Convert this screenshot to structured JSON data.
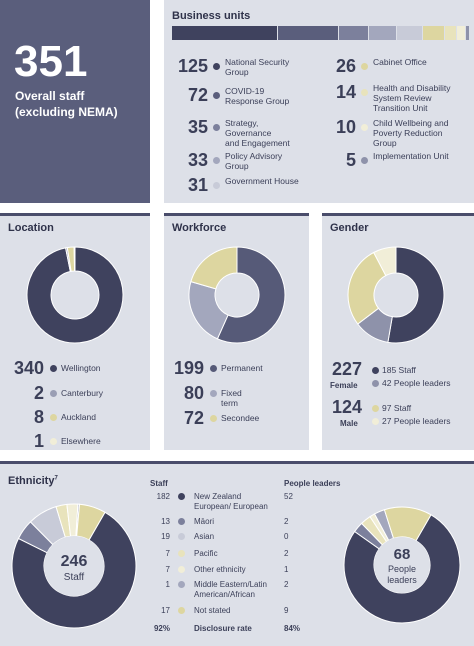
{
  "overall": {
    "number": "351",
    "label_line1": "Overall staff",
    "label_line2": "(excluding NEMA)"
  },
  "business_units": {
    "title": "Business units",
    "items": [
      {
        "value": 125,
        "label": "National Security Group",
        "lines": [
          "National Security",
          "Group"
        ],
        "color": "#3f425e"
      },
      {
        "value": 72,
        "label": "COVID-19 Response Group",
        "lines": [
          "COVID-19",
          "Response Group"
        ],
        "color": "#5a5e7c"
      },
      {
        "value": 35,
        "label": "Strategy, Governance and Engagement",
        "lines": [
          "Strategy,",
          "Governance",
          "and Engagement"
        ],
        "color": "#7c809c"
      },
      {
        "value": 33,
        "label": "Policy Advisory Group",
        "lines": [
          "Policy Advisory",
          "Group"
        ],
        "color": "#a3a7bd"
      },
      {
        "value": 31,
        "label": "Government House",
        "lines": [
          "Government House"
        ],
        "color": "#c8cbd8"
      },
      {
        "value": 26,
        "label": "Cabinet Office",
        "lines": [
          "Cabinet Office"
        ],
        "color": "#ddd6a0"
      },
      {
        "value": 14,
        "label": "Health and Disability System Review Transition Unit",
        "lines": [
          "Health and Disability",
          "System Review",
          "Transition Unit"
        ],
        "color": "#e8e3bc"
      },
      {
        "value": 10,
        "label": "Child Wellbeing and Poverty Reduction Group",
        "lines": [
          "Child Wellbeing and",
          "Poverty Reduction",
          "Group"
        ],
        "color": "#f1eed8"
      },
      {
        "value": 5,
        "label": "Implementation Unit",
        "lines": [
          "Implementation Unit"
        ],
        "color": "#8e92aa"
      }
    ]
  },
  "location": {
    "title": "Location",
    "items": [
      {
        "value": 340,
        "label": "Wellington",
        "color": "#3f425e"
      },
      {
        "value": 2,
        "label": "Canterbury",
        "color": "#9a9eb4"
      },
      {
        "value": 8,
        "label": "Auckland",
        "color": "#ddd6a0"
      },
      {
        "value": 1,
        "label": "Elsewhere",
        "color": "#f1eed8"
      }
    ]
  },
  "workforce": {
    "title": "Workforce",
    "items": [
      {
        "value": 199,
        "label": "Permanent",
        "color": "#565a78"
      },
      {
        "value": 80,
        "label": "Fixed term",
        "color": "#a3a7bd"
      },
      {
        "value": 72,
        "label": "Secondee",
        "color": "#ddd6a0"
      }
    ]
  },
  "gender": {
    "title": "Gender",
    "female": {
      "value": 227,
      "label": "Female",
      "staff": "185 Staff",
      "leaders": "42 People leaders"
    },
    "male": {
      "value": 124,
      "label": "Male",
      "staff": "97 Staff",
      "leaders": "27 People leaders"
    },
    "segments": [
      {
        "value": 185,
        "color": "#3f425e"
      },
      {
        "value": 42,
        "color": "#8e92aa"
      },
      {
        "value": 97,
        "color": "#ddd6a0"
      },
      {
        "value": 27,
        "color": "#f1eed8"
      }
    ]
  },
  "ethnicity": {
    "title": "Ethnicity",
    "title_sup": "7",
    "staff_total": "246",
    "staff_label": "Staff",
    "leaders_total": "68",
    "leaders_label_line1": "People",
    "leaders_label_line2": "leaders",
    "col_staff": "Staff",
    "col_leaders": "People leaders",
    "rows": [
      {
        "staff": "182",
        "label_lines": [
          "New Zealand",
          "European/ European"
        ],
        "leaders": "52",
        "color": "#3f425e"
      },
      {
        "staff": "13",
        "label_lines": [
          "Māori"
        ],
        "leaders": "2",
        "color": "#7c809c"
      },
      {
        "staff": "19",
        "label_lines": [
          "Asian"
        ],
        "leaders": "0",
        "color": "#c8cbd8"
      },
      {
        "staff": "7",
        "label_lines": [
          "Pacific"
        ],
        "leaders": "2",
        "color": "#e8e3bc"
      },
      {
        "staff": "7",
        "label_lines": [
          "Other ethnicity"
        ],
        "leaders": "1",
        "color": "#f1eed8"
      },
      {
        "staff": "1",
        "label_lines": [
          "Middle Eastern/Latin",
          "American/African"
        ],
        "leaders": "2",
        "color": "#a3a7bd"
      },
      {
        "staff": "17",
        "label_lines": [
          "Not stated"
        ],
        "leaders": "9",
        "color": "#ddd6a0"
      }
    ],
    "disclosure": {
      "staff": "92%",
      "label": "Disclosure rate",
      "leaders": "84%"
    }
  },
  "chart_data": [
    {
      "type": "bar",
      "title": "Business units",
      "categories": [
        "National Security Group",
        "COVID-19 Response Group",
        "Strategy, Governance and Engagement",
        "Policy Advisory Group",
        "Government House",
        "Cabinet Office",
        "Health and Disability System Review Transition Unit",
        "Child Wellbeing and Poverty Reduction Group",
        "Implementation Unit"
      ],
      "values": [
        125,
        72,
        35,
        33,
        31,
        26,
        14,
        10,
        5
      ]
    },
    {
      "type": "pie",
      "title": "Location",
      "categories": [
        "Wellington",
        "Canterbury",
        "Auckland",
        "Elsewhere"
      ],
      "values": [
        340,
        2,
        8,
        1
      ]
    },
    {
      "type": "pie",
      "title": "Workforce",
      "categories": [
        "Permanent",
        "Fixed term",
        "Secondee"
      ],
      "values": [
        199,
        80,
        72
      ]
    },
    {
      "type": "pie",
      "title": "Gender",
      "categories": [
        "Female Staff",
        "Female People leaders",
        "Male Staff",
        "Male People leaders"
      ],
      "values": [
        185,
        42,
        97,
        27
      ]
    },
    {
      "type": "pie",
      "title": "Ethnicity",
      "series": [
        {
          "name": "Staff",
          "categories": [
            "New Zealand European/ European",
            "Māori",
            "Asian",
            "Pacific",
            "Other ethnicity",
            "Middle Eastern/Latin American/African",
            "Not stated"
          ],
          "values": [
            182,
            13,
            19,
            7,
            7,
            1,
            17
          ]
        },
        {
          "name": "People leaders",
          "categories": [
            "New Zealand European/ European",
            "Māori",
            "Asian",
            "Pacific",
            "Other ethnicity",
            "Middle Eastern/Latin American/African",
            "Not stated"
          ],
          "values": [
            52,
            2,
            0,
            2,
            1,
            2,
            9
          ]
        }
      ]
    }
  ]
}
